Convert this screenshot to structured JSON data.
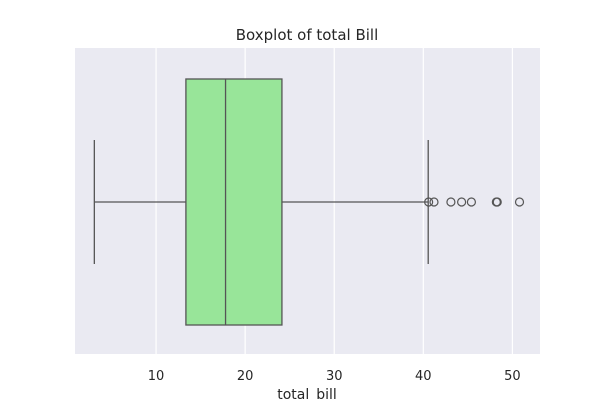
{
  "chart_data": {
    "type": "box",
    "title": "Boxplot of total Bill",
    "xlabel": "total_bill",
    "ylabel": "",
    "xlim": [
      0.9,
      53.1
    ],
    "xticks": [
      10,
      20,
      30,
      40,
      50
    ],
    "orientation": "horizontal",
    "series": [
      {
        "name": "total_bill",
        "whisker_low": 3.07,
        "q1": 13.35,
        "median": 17.8,
        "q3": 24.13,
        "whisker_high": 40.55,
        "outliers": [
          40.6,
          41.2,
          43.1,
          44.3,
          45.4,
          48.2,
          48.3,
          50.8
        ]
      }
    ],
    "colors": {
      "box_fill": "#98e599",
      "line": "#555555",
      "plot_background": "#eaeaf2",
      "grid": "#ffffff"
    },
    "grid": true
  }
}
